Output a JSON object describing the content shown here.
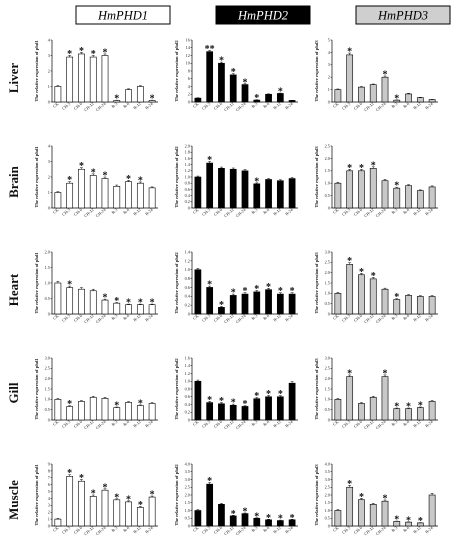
{
  "headers": [
    {
      "label": "HmPHD1",
      "fill": "#ffffff",
      "text_color": "#000000"
    },
    {
      "label": "HmPHD2",
      "fill": "#000000",
      "text_color": "#ffffff"
    },
    {
      "label": "HmPHD3",
      "fill": "#cfcfcf",
      "text_color": "#000000"
    }
  ],
  "tissues": [
    "Liver",
    "Brain",
    "Heart",
    "Gill",
    "Muscle"
  ],
  "colors": {
    "phd1_bar": "#ffffff",
    "phd2_bar": "#000000",
    "phd3_bar": "#c8c8c8",
    "bar_stroke": "#000000"
  },
  "chart_data": [
    {
      "type": "bar",
      "row": 0,
      "col": 0,
      "categories": [
        "CK",
        "CH-3",
        "CH-6",
        "CH-12",
        "CH-24",
        "R-3",
        "R-6",
        "R-12",
        "R-24"
      ],
      "values": [
        1.0,
        2.9,
        3.1,
        2.9,
        3.0,
        0.1,
        0.8,
        1.0,
        0.1
      ],
      "errors": [
        0.05,
        0.1,
        0.1,
        0.1,
        0.1,
        0.02,
        0.05,
        0.05,
        0.02
      ],
      "significance": [
        "",
        "*",
        "*",
        "*",
        "*",
        "*",
        "",
        "",
        "*"
      ],
      "ylim": [
        0,
        4
      ],
      "yticks": [
        "0",
        "1",
        "2",
        "3",
        "4"
      ],
      "ylabel": "The relative expression of phd1"
    },
    {
      "type": "bar",
      "row": 0,
      "col": 1,
      "categories": [
        "CK",
        "CH-3",
        "CH-6",
        "CH-12",
        "CH-24",
        "R-3",
        "R-6",
        "R-12",
        "R-24"
      ],
      "values": [
        1.0,
        13.0,
        10.0,
        7.0,
        4.5,
        0.5,
        2.0,
        2.2,
        0.4
      ],
      "errors": [
        0.1,
        0.3,
        0.3,
        0.3,
        0.2,
        0.1,
        0.1,
        0.1,
        0.05
      ],
      "significance": [
        "",
        "**",
        "*",
        "*",
        "*",
        "*",
        "",
        "*",
        ""
      ],
      "ylim": [
        0,
        16
      ],
      "yticks": [
        "0",
        "2",
        "4",
        "6",
        "8",
        "10",
        "12",
        "14",
        "16"
      ],
      "ylabel": "The relative expression of phd2"
    },
    {
      "type": "bar",
      "row": 0,
      "col": 2,
      "categories": [
        "CK",
        "CH-3",
        "CH-6",
        "CH-12",
        "CH-24",
        "R-3",
        "R-6",
        "R-12",
        "R-24"
      ],
      "values": [
        1.0,
        3.8,
        1.2,
        1.4,
        2.0,
        0.15,
        0.65,
        0.35,
        0.2
      ],
      "errors": [
        0.05,
        0.15,
        0.05,
        0.05,
        0.1,
        0.02,
        0.05,
        0.03,
        0.02
      ],
      "significance": [
        "",
        "*",
        "",
        "",
        "*",
        "*",
        "",
        "",
        ""
      ],
      "ylim": [
        0,
        5
      ],
      "yticks": [
        "0",
        "1",
        "2",
        "3",
        "4",
        "5"
      ],
      "ylabel": "The relative expression of phd3"
    },
    {
      "type": "bar",
      "row": 1,
      "col": 0,
      "categories": [
        "CK",
        "CH-3",
        "CH-6",
        "CH-12",
        "CH-24",
        "R-3",
        "R-6",
        "R-12",
        "R-24"
      ],
      "values": [
        1.0,
        1.6,
        2.5,
        2.1,
        1.9,
        1.4,
        1.7,
        1.6,
        1.3
      ],
      "errors": [
        0.05,
        0.1,
        0.1,
        0.1,
        0.1,
        0.08,
        0.08,
        0.08,
        0.06
      ],
      "significance": [
        "",
        "*",
        "*",
        "*",
        "*",
        "",
        "*",
        "*",
        ""
      ],
      "ylim": [
        0,
        4
      ],
      "yticks": [
        "0",
        "1",
        "2",
        "3",
        "4"
      ],
      "ylabel": "The relative expression of phd1"
    },
    {
      "type": "bar",
      "row": 1,
      "col": 1,
      "categories": [
        "CK",
        "CH-3",
        "CH-6",
        "CH-12",
        "CH-24",
        "R-3",
        "R-6",
        "R-12",
        "R-24"
      ],
      "values": [
        1.0,
        1.45,
        1.28,
        1.25,
        1.2,
        0.78,
        0.92,
        0.88,
        0.95
      ],
      "errors": [
        0.03,
        0.05,
        0.04,
        0.04,
        0.04,
        0.03,
        0.03,
        0.03,
        0.03
      ],
      "significance": [
        "",
        "*",
        "",
        "",
        "",
        "*",
        "",
        "",
        ""
      ],
      "ylim": [
        0,
        2
      ],
      "yticks": [
        "0",
        "0.2",
        "0.4",
        "0.6",
        "0.8",
        "1.0",
        "1.2",
        "1.4",
        "1.6",
        "1.8",
        "2.0"
      ],
      "ylabel": "The relative expression of phd2"
    },
    {
      "type": "bar",
      "row": 1,
      "col": 2,
      "categories": [
        "CK",
        "CH-3",
        "CH-6",
        "CH-12",
        "CH-24",
        "R-3",
        "R-6",
        "R-12",
        "R-24"
      ],
      "values": [
        1.0,
        1.5,
        1.5,
        1.6,
        1.1,
        0.8,
        0.9,
        0.7,
        0.85
      ],
      "errors": [
        0.04,
        0.06,
        0.06,
        0.06,
        0.05,
        0.04,
        0.04,
        0.03,
        0.04
      ],
      "significance": [
        "",
        "*",
        "*",
        "*",
        "",
        "*",
        "",
        "",
        ""
      ],
      "ylim": [
        0,
        2.5
      ],
      "yticks": [
        "0",
        "0.5",
        "1.0",
        "1.5",
        "2.0",
        "2.5"
      ],
      "ylabel": "The relative expression of phd3"
    },
    {
      "type": "bar",
      "row": 2,
      "col": 0,
      "categories": [
        "CK",
        "CH-3",
        "CH-6",
        "CH-12",
        "CH-24",
        "R-3",
        "R-6",
        "R-12",
        "R-24"
      ],
      "values": [
        1.0,
        0.85,
        0.8,
        0.75,
        0.45,
        0.35,
        0.3,
        0.3,
        0.3
      ],
      "errors": [
        0.05,
        0.05,
        0.05,
        0.05,
        0.03,
        0.02,
        0.02,
        0.02,
        0.02
      ],
      "significance": [
        "",
        "*",
        "",
        "",
        "*",
        "*",
        "*",
        "*",
        "*"
      ],
      "ylim": [
        0,
        2
      ],
      "yticks": [
        "0",
        "0.5",
        "1.0",
        "1.5",
        "2.0"
      ],
      "ylabel": "The relative expression of phd1"
    },
    {
      "type": "bar",
      "row": 2,
      "col": 1,
      "categories": [
        "CK",
        "CH-3",
        "CH-6",
        "CH-12",
        "CH-24",
        "R-3",
        "R-6",
        "R-12",
        "R-24"
      ],
      "values": [
        1.0,
        0.6,
        0.15,
        0.42,
        0.45,
        0.5,
        0.55,
        0.45,
        0.45
      ],
      "errors": [
        0.03,
        0.03,
        0.02,
        0.03,
        0.03,
        0.03,
        0.03,
        0.03,
        0.03
      ],
      "significance": [
        "",
        "*",
        "*",
        "*",
        "*",
        "*",
        "*",
        "*",
        "*"
      ],
      "ylim": [
        0,
        1.4
      ],
      "yticks": [
        "0",
        "0.2",
        "0.4",
        "0.6",
        "0.8",
        "1.0",
        "1.2",
        "1.4"
      ],
      "ylabel": "The relative expression of phd2"
    },
    {
      "type": "bar",
      "row": 2,
      "col": 2,
      "categories": [
        "CK",
        "CH-3",
        "CH-6",
        "CH-12",
        "CH-24",
        "R-3",
        "R-6",
        "R-12",
        "R-24"
      ],
      "values": [
        1.0,
        2.4,
        1.9,
        1.7,
        1.2,
        0.7,
        0.9,
        0.85,
        0.85
      ],
      "errors": [
        0.04,
        0.08,
        0.07,
        0.07,
        0.05,
        0.04,
        0.04,
        0.04,
        0.04
      ],
      "significance": [
        "",
        "*",
        "*",
        "*",
        "",
        "*",
        "",
        "",
        ""
      ],
      "ylim": [
        0,
        3
      ],
      "yticks": [
        "0",
        "0.5",
        "1.0",
        "1.5",
        "2.0",
        "2.5",
        "3.0"
      ],
      "ylabel": "The relative expression of phd3"
    },
    {
      "type": "bar",
      "row": 3,
      "col": 0,
      "categories": [
        "CK",
        "CH-3",
        "CH-6",
        "CH-12",
        "CH-24",
        "R-3",
        "R-6",
        "R-12",
        "R-24"
      ],
      "values": [
        1.0,
        0.65,
        0.9,
        1.1,
        1.05,
        0.6,
        0.85,
        0.7,
        0.8
      ],
      "errors": [
        0.04,
        0.04,
        0.04,
        0.05,
        0.05,
        0.03,
        0.04,
        0.03,
        0.04
      ],
      "significance": [
        "",
        "*",
        "",
        "",
        "",
        "*",
        "",
        "*",
        ""
      ],
      "ylim": [
        0,
        3
      ],
      "yticks": [
        "0",
        "0.5",
        "1.0",
        "1.5",
        "2.0",
        "2.5",
        "3.0"
      ],
      "ylabel": "The relative expression of phd1"
    },
    {
      "type": "bar",
      "row": 3,
      "col": 1,
      "categories": [
        "CK",
        "CH-3",
        "CH-6",
        "CH-12",
        "CH-24",
        "R-3",
        "R-6",
        "R-12",
        "R-24"
      ],
      "values": [
        1.0,
        0.45,
        0.42,
        0.38,
        0.35,
        0.55,
        0.6,
        0.6,
        0.95
      ],
      "errors": [
        0.03,
        0.03,
        0.03,
        0.03,
        0.02,
        0.03,
        0.03,
        0.03,
        0.04
      ],
      "significance": [
        "",
        "*",
        "*",
        "*",
        "*",
        "*",
        "*",
        "*",
        ""
      ],
      "ylim": [
        0,
        1.6
      ],
      "yticks": [
        "0",
        "0.2",
        "0.4",
        "0.6",
        "0.8",
        "1.0",
        "1.2",
        "1.4",
        "1.6"
      ],
      "ylabel": "The relative expression of phd2"
    },
    {
      "type": "bar",
      "row": 3,
      "col": 2,
      "categories": [
        "CK",
        "CH-3",
        "CH-6",
        "CH-12",
        "CH-24",
        "R-3",
        "R-6",
        "R-12",
        "R-24"
      ],
      "values": [
        1.0,
        2.1,
        0.8,
        1.1,
        2.1,
        0.55,
        0.55,
        0.6,
        0.9
      ],
      "errors": [
        0.04,
        0.08,
        0.04,
        0.05,
        0.08,
        0.03,
        0.03,
        0.03,
        0.04
      ],
      "significance": [
        "",
        "*",
        "",
        "",
        "*",
        "*",
        "*",
        "*",
        ""
      ],
      "ylim": [
        0,
        3
      ],
      "yticks": [
        "0",
        "0.5",
        "1.0",
        "1.5",
        "2.0",
        "2.5",
        "3.0"
      ],
      "ylabel": "The relative expression of phd3"
    },
    {
      "type": "bar",
      "row": 4,
      "col": 0,
      "categories": [
        "CK",
        "CH-3",
        "CH-6",
        "CH-12",
        "CH-24",
        "R-3",
        "R-6",
        "R-12",
        "R-24"
      ],
      "values": [
        1.0,
        7.2,
        6.5,
        4.3,
        5.2,
        3.8,
        3.5,
        2.7,
        4.2
      ],
      "errors": [
        0.1,
        0.25,
        0.25,
        0.2,
        0.2,
        0.15,
        0.15,
        0.15,
        0.15
      ],
      "significance": [
        "",
        "*",
        "*",
        "*",
        "*",
        "*",
        "*",
        "*",
        "*"
      ],
      "ylim": [
        0,
        9
      ],
      "yticks": [
        "0",
        "1",
        "2",
        "3",
        "4",
        "5",
        "6",
        "7",
        "8",
        "9"
      ],
      "ylabel": "The relative expression of phd1"
    },
    {
      "type": "bar",
      "row": 4,
      "col": 1,
      "categories": [
        "CK",
        "CH-3",
        "CH-6",
        "CH-12",
        "CH-24",
        "R-3",
        "R-6",
        "R-12",
        "R-24"
      ],
      "values": [
        1.0,
        2.7,
        1.4,
        0.65,
        0.8,
        0.5,
        0.4,
        0.35,
        0.4
      ],
      "errors": [
        0.05,
        0.1,
        0.06,
        0.04,
        0.04,
        0.03,
        0.03,
        0.03,
        0.03
      ],
      "significance": [
        "",
        "*",
        "",
        "*",
        "*",
        "*",
        "*",
        "*",
        "*"
      ],
      "ylim": [
        0,
        4
      ],
      "yticks": [
        "0",
        "0.5",
        "1.0",
        "1.5",
        "2.0",
        "2.5",
        "3.0",
        "3.5",
        "4.0"
      ],
      "ylabel": "The relative expression of phd2"
    },
    {
      "type": "bar",
      "row": 4,
      "col": 2,
      "categories": [
        "CK",
        "CH-3",
        "CH-6",
        "CH-12",
        "CH-24",
        "R-3",
        "R-6",
        "R-12",
        "R-24"
      ],
      "values": [
        1.0,
        2.5,
        1.7,
        1.4,
        1.6,
        0.3,
        0.25,
        0.2,
        2.0
      ],
      "errors": [
        0.05,
        0.12,
        0.08,
        0.06,
        0.08,
        0.02,
        0.02,
        0.02,
        0.1
      ],
      "significance": [
        "",
        "*",
        "*",
        "",
        "*",
        "*",
        "*",
        "*",
        ""
      ],
      "ylim": [
        0,
        4
      ],
      "yticks": [
        "0",
        "0.5",
        "1.0",
        "1.5",
        "2.0",
        "2.5",
        "3.0",
        "3.5",
        "4.0"
      ],
      "ylabel": "The relative expression of phd3"
    }
  ]
}
